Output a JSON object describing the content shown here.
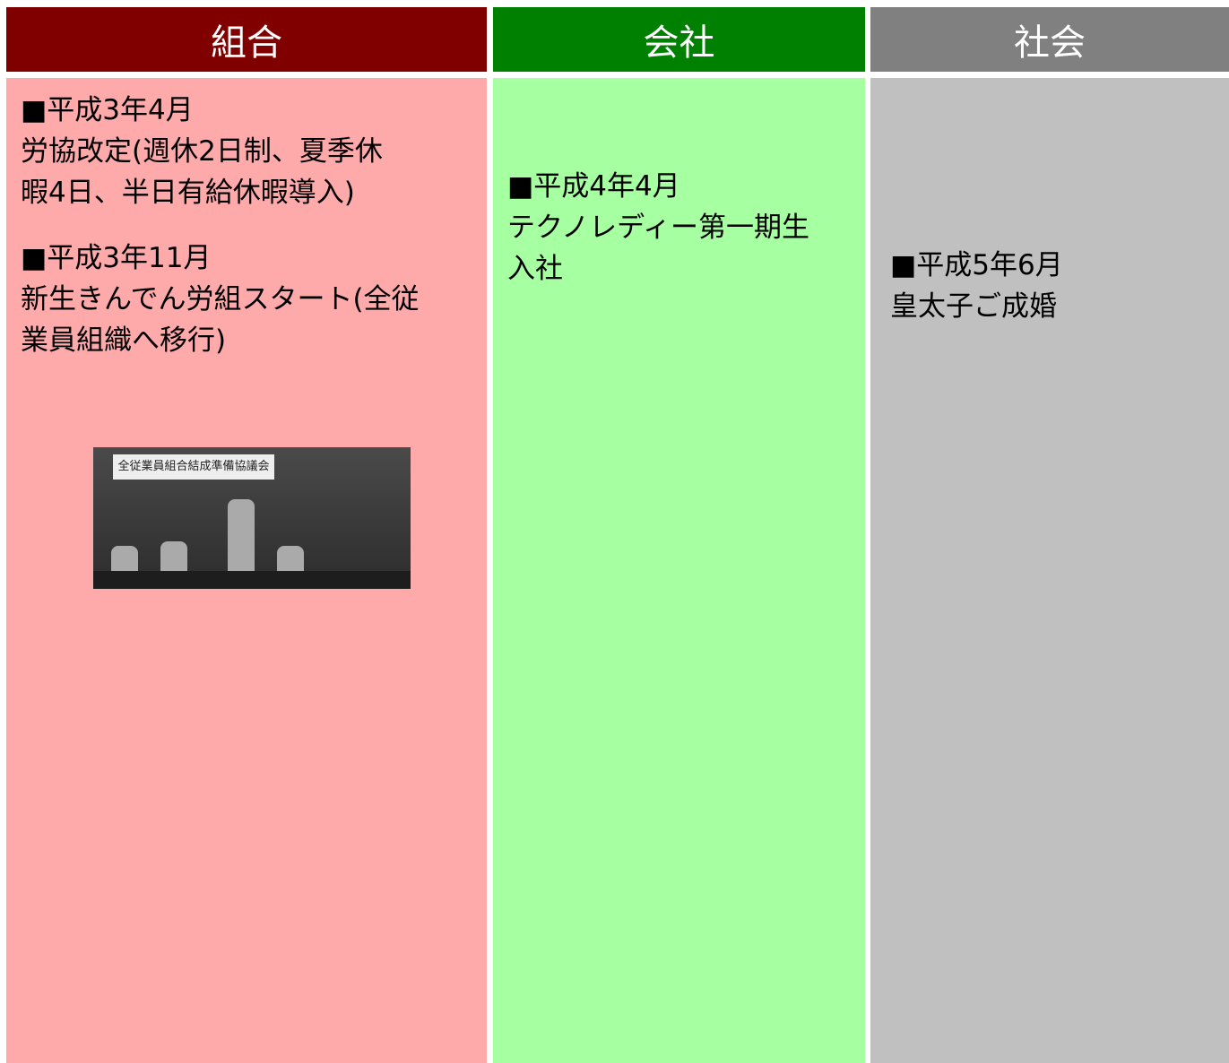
{
  "columns": [
    {
      "header": "組合",
      "entries": [
        {
          "date": "■平成3年4月",
          "lines": [
            "労協改定(週休2日制、夏季休",
            "暇4日、半日有給休暇導入)"
          ]
        },
        {
          "date": "■平成3年11月",
          "lines": [
            "新生きんでん労組スタート(全従",
            "業員組織へ移行)"
          ]
        }
      ],
      "photo": {
        "caption": "全従業員組合結成準備協議会"
      }
    },
    {
      "header": "会社",
      "entries": [
        {
          "date": "■平成4年4月",
          "lines": [
            "テクノレディー第一期生",
            "入社"
          ]
        }
      ]
    },
    {
      "header": "社会",
      "entries": [
        {
          "date": "■平成5年6月",
          "lines": [
            "皇太子ご成婚"
          ]
        }
      ]
    }
  ]
}
